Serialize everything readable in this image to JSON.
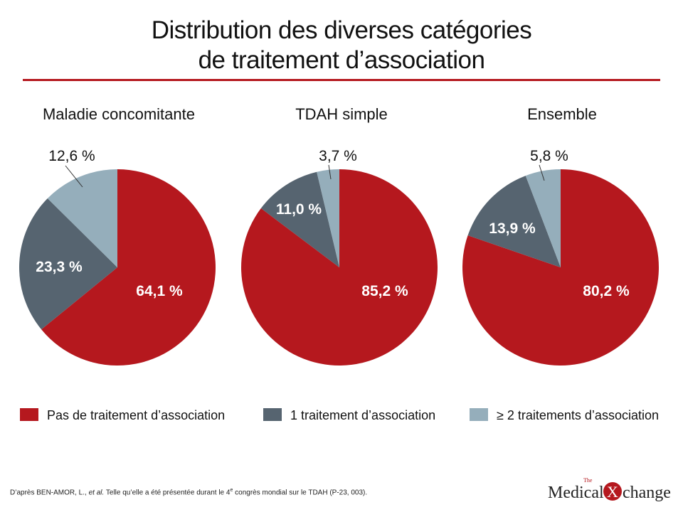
{
  "slide": {
    "title_line1": "Distribution des diverses catégories",
    "title_line2": "de traitement d’association",
    "footnote": {
      "part1": "D’après BEN-AMOR, L., ",
      "etal": "et al.",
      "part2": " Telle qu’elle a été présentée durant le 4",
      "sup": "e",
      "part3": " congrès mondial sur le TDAH (P-23, 003)."
    },
    "logo": {
      "the": "The",
      "word1": "Medical",
      "x": "X",
      "word2": "change"
    },
    "accent_color": "#b5181e"
  },
  "chart_data": {
    "type": "pie",
    "legend_position": "bottom",
    "legend": [
      {
        "label": "Pas de traitement d’association",
        "color": "#b5181e"
      },
      {
        "label": "1 traitement d’association",
        "color": "#566470"
      },
      {
        "label": "≥ 2 traitements d’association",
        "color": "#95aebb"
      }
    ],
    "charts": [
      {
        "title": "Maladie concomitante",
        "slices": [
          {
            "label": "64,1 %",
            "value": 64.1
          },
          {
            "label": "23,3 %",
            "value": 23.3
          },
          {
            "label": "12,6 %",
            "value": 12.6
          }
        ]
      },
      {
        "title": "TDAH simple",
        "slices": [
          {
            "label": "85,2 %",
            "value": 85.2
          },
          {
            "label": "11,0 %",
            "value": 11.0
          },
          {
            "label": "3,7 %",
            "value": 3.7
          }
        ]
      },
      {
        "title": "Ensemble",
        "slices": [
          {
            "label": "80,2 %",
            "value": 80.2
          },
          {
            "label": "13,9 %",
            "value": 13.9
          },
          {
            "label": "5,8 %",
            "value": 5.8
          }
        ]
      }
    ]
  }
}
